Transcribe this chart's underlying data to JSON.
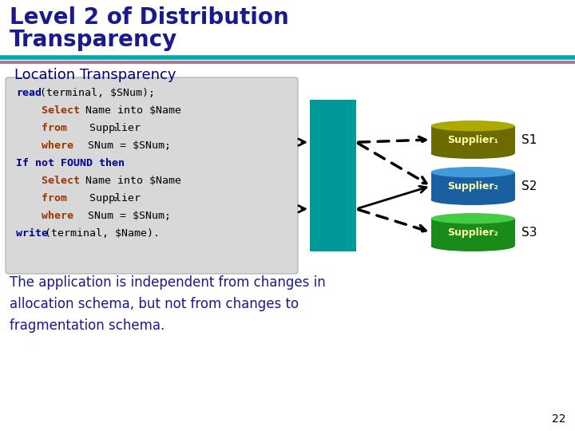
{
  "title_line1": "Level 2 of Distribution",
  "title_line2": "Transparency",
  "title_color": "#1a1a8c",
  "bg_color": "#ffffff",
  "subtitle": "Location Transparency",
  "subtitle_color": "#000080",
  "sep_color1": "#00aaaa",
  "sep_color2": "#aa7799",
  "code_bg": "#d8d8d8",
  "code_blue": "#000099",
  "code_red": "#993300",
  "code_black": "#000000",
  "teal_box_color": "#009999",
  "supplier_colors": [
    "#6b6b00",
    "#1a5fa0",
    "#1a8a1a"
  ],
  "supplier_top_colors": [
    "#aaaa00",
    "#4499dd",
    "#44cc44"
  ],
  "supplier_labels": [
    "Supplier₁",
    "Supplier₂",
    "Supplier₂"
  ],
  "site_labels": [
    "S1",
    "S2",
    "S3"
  ],
  "bottom_text_color": "#1a1a8c",
  "bottom_line1": "The application is independent from changes in",
  "bottom_line2": "allocation schema, but not from changes to",
  "bottom_line3": "fragmentation schema.",
  "page_number": "22"
}
